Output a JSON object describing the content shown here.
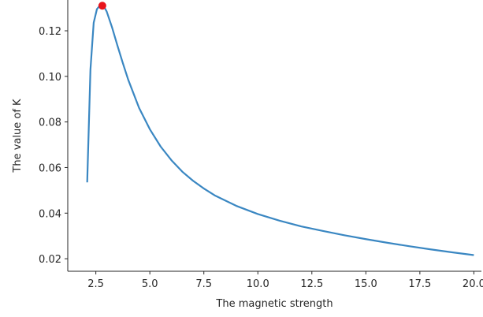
{
  "chart_data": {
    "type": "line",
    "title": "",
    "xlabel": "The magnetic strength",
    "ylabel": "The value of K",
    "xlim": [
      1.2,
      20.35
    ],
    "ylim": [
      0.0145,
      0.1335
    ],
    "x_ticks": [
      2.5,
      5.0,
      7.5,
      10.0,
      12.5,
      15.0,
      17.5,
      20.0
    ],
    "x_tick_labels": [
      "2.5",
      "5.0",
      "7.5",
      "10.0",
      "12.5",
      "15.0",
      "17.5",
      "20.0"
    ],
    "y_ticks": [
      0.02,
      0.04,
      0.06,
      0.08,
      0.1,
      0.12
    ],
    "y_tick_labels": [
      "0.02",
      "0.04",
      "0.06",
      "0.08",
      "0.10",
      "0.12"
    ],
    "grid": false,
    "series": [
      {
        "color": "#3a87c2",
        "x": [
          2.1,
          2.25,
          2.4,
          2.55,
          2.7,
          2.85,
          3.0,
          3.25,
          3.5,
          3.75,
          4.0,
          4.5,
          5.0,
          5.5,
          6.0,
          6.5,
          7.0,
          7.5,
          8.0,
          9.0,
          10.0,
          11.0,
          12.0,
          13.0,
          14.0,
          15.0,
          16.0,
          17.0,
          18.0,
          19.0,
          20.0
        ],
        "y": [
          0.0535,
          0.103,
          0.1235,
          0.1295,
          0.1312,
          0.131,
          0.1285,
          0.1215,
          0.1135,
          0.1058,
          0.0985,
          0.0862,
          0.0768,
          0.0692,
          0.0632,
          0.0582,
          0.0542,
          0.0508,
          0.0478,
          0.0432,
          0.0396,
          0.0367,
          0.0342,
          0.0322,
          0.0303,
          0.0286,
          0.027,
          0.0255,
          0.0241,
          0.0228,
          0.0216
        ]
      }
    ],
    "marker": {
      "x": 2.8,
      "y": 0.131,
      "color": "#e8141c"
    }
  }
}
